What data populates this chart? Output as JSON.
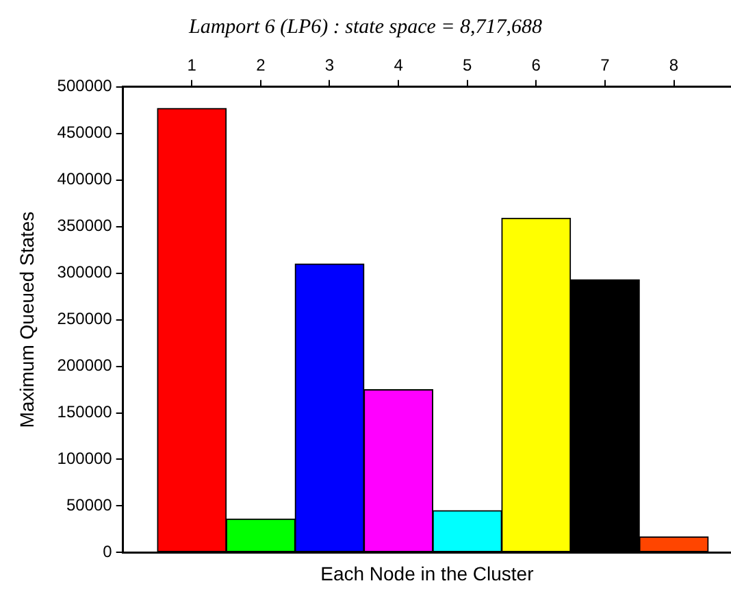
{
  "chart_data": {
    "type": "bar",
    "title": "Lamport 6 (LP6) : state space = 8,717,688",
    "xlabel": "Each Node in the Cluster",
    "ylabel": "Maximum Queued States",
    "x": [
      1,
      2,
      3,
      4,
      5,
      6,
      7,
      8
    ],
    "values": [
      477000,
      36000,
      310000,
      175000,
      45000,
      359000,
      293000,
      17000
    ],
    "colors": [
      "#ff0000",
      "#00ff00",
      "#0000ff",
      "#ff00ff",
      "#00ffff",
      "#ffff00",
      "#000000",
      "#ff4500"
    ],
    "xlim": [
      0,
      8.83
    ],
    "xticks": [
      1,
      2,
      3,
      4,
      5,
      6,
      7,
      8
    ],
    "ylim": [
      0,
      500000
    ],
    "yticks": [
      0,
      50000,
      100000,
      150000,
      200000,
      250000,
      300000,
      350000,
      400000,
      450000,
      500000
    ],
    "grid": false,
    "legend": false
  }
}
